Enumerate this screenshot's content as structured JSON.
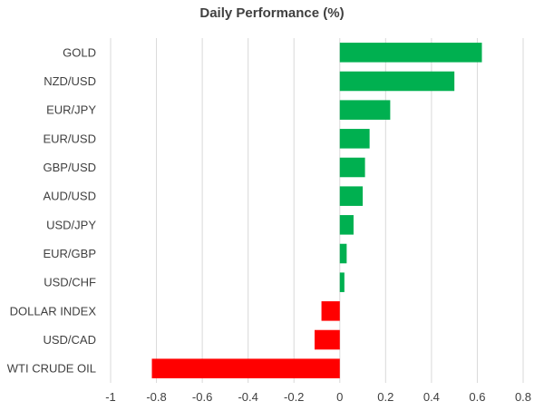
{
  "chart_data": {
    "type": "bar",
    "orientation": "horizontal",
    "title": "Daily Performance (%)",
    "categories": [
      "GOLD",
      "NZD/USD",
      "EUR/JPY",
      "EUR/USD",
      "GBP/USD",
      "AUD/USD",
      "USD/JPY",
      "EUR/GBP",
      "USD/CHF",
      "DOLLAR INDEX",
      "USD/CAD",
      "WTI CRUDE OIL"
    ],
    "values": [
      0.62,
      0.5,
      0.22,
      0.13,
      0.11,
      0.1,
      0.06,
      0.03,
      0.02,
      -0.08,
      -0.11,
      -0.82
    ],
    "xlim": [
      -1,
      0.8
    ],
    "xticks": [
      -1,
      -0.8,
      -0.6,
      -0.4,
      -0.2,
      0,
      0.2,
      0.4,
      0.6,
      0.8
    ],
    "xticklabels": [
      "-1",
      "-0.8",
      "-0.6",
      "-0.4",
      "-0.2",
      "0",
      "0.2",
      "0.4",
      "0.6",
      "0.8"
    ],
    "positive_color": "#00b050",
    "negative_color": "#ff0000",
    "grid": true,
    "xlabel": "",
    "ylabel": ""
  }
}
